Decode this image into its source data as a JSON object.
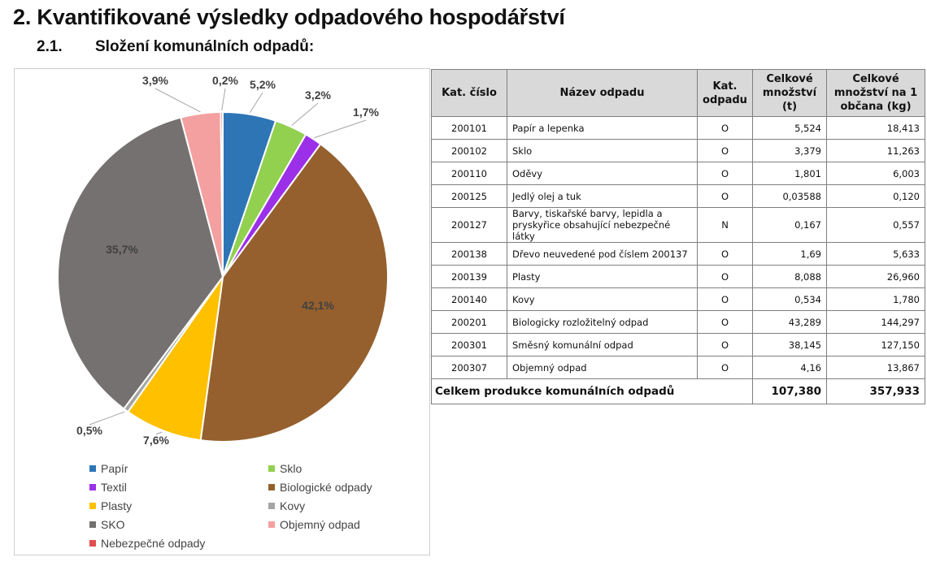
{
  "heading": {
    "main": "2. Kvantifikované výsledky odpadového hospodářství",
    "sub_number": "2.1.",
    "sub_title": "Složení komunálních odpadů:"
  },
  "chart_data": {
    "type": "pie",
    "categories": [
      "Papír",
      "Sklo",
      "Textil",
      "Biologické odpady",
      "Plasty",
      "Kovy",
      "SKO",
      "Objemný odpad",
      "Nebezpečné odpady"
    ],
    "values": [
      5.2,
      3.2,
      1.7,
      42.1,
      7.6,
      0.5,
      35.7,
      3.9,
      0.2
    ],
    "labels": [
      "5,2%",
      "3,2%",
      "1,7%",
      "42,1%",
      "7,6%",
      "0,5%",
      "35,7%",
      "3,9%",
      "0,2%"
    ],
    "colors": [
      "#2e75b6",
      "#92d050",
      "#9b30e8",
      "#95602e",
      "#ffc000",
      "#a5a5a5",
      "#767171",
      "#f4a0a0",
      "#e05050"
    ],
    "legend_position": "bottom"
  },
  "table": {
    "headers": [
      "Kat. číslo",
      "Název odpadu",
      "Kat. odpadu",
      "Celkové množství (t)",
      "Celkové množství na 1 občana (kg)"
    ],
    "rows": [
      {
        "code": "200101",
        "name": "Papír a lepenka",
        "cat": "O",
        "total": "5,524",
        "per_capita": "18,413"
      },
      {
        "code": "200102",
        "name": "Sklo",
        "cat": "O",
        "total": "3,379",
        "per_capita": "11,263"
      },
      {
        "code": "200110",
        "name": "Oděvy",
        "cat": "O",
        "total": "1,801",
        "per_capita": "6,003"
      },
      {
        "code": "200125",
        "name": "Jedlý olej a tuk",
        "cat": "O",
        "total": "0,03588",
        "per_capita": "0,120"
      },
      {
        "code": "200127",
        "name": "Barvy, tiskařské barvy, lepidla a pryskyřice obsahující nebezpečné látky",
        "cat": "N",
        "total": "0,167",
        "per_capita": "0,557"
      },
      {
        "code": "200138",
        "name": "Dřevo neuvedené pod číslem 200137",
        "cat": "O",
        "total": "1,69",
        "per_capita": "5,633"
      },
      {
        "code": "200139",
        "name": "Plasty",
        "cat": "O",
        "total": "8,088",
        "per_capita": "26,960"
      },
      {
        "code": "200140",
        "name": "Kovy",
        "cat": "O",
        "total": "0,534",
        "per_capita": "1,780"
      },
      {
        "code": "200201",
        "name": "Biologicky rozložitelný odpad",
        "cat": "O",
        "total": "43,289",
        "per_capita": "144,297"
      },
      {
        "code": "200301",
        "name": "Směsný komunální odpad",
        "cat": "O",
        "total": "38,145",
        "per_capita": "127,150"
      },
      {
        "code": "200307",
        "name": "Objemný odpad",
        "cat": "O",
        "total": "4,16",
        "per_capita": "13,867"
      }
    ],
    "total": {
      "label": "Celkem produkce komunálních odpadů",
      "total": "107,380",
      "per_capita": "357,933"
    }
  }
}
